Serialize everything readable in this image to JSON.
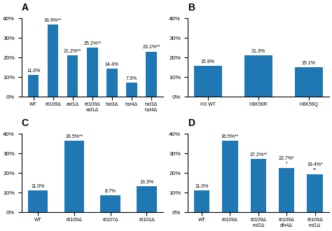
{
  "chart_data": [
    {
      "type": "bar",
      "title": "A",
      "categories": [
        "WT",
        "rtt109Δ",
        "asf1Δ",
        "rtt109Δ\nasf1Δ",
        "hst3Δ",
        "hst4Δ",
        "hst3Δ\nhst4Δ"
      ],
      "values": [
        11.0,
        36.9,
        21.2,
        25.2,
        14.4,
        7.3,
        23.1
      ],
      "value_labels": [
        "11.0%",
        "36.9%**",
        "21.2%**",
        "25.2%**",
        "14.4%",
        "7.3%",
        "23.1%**"
      ],
      "data_labels": true,
      "ylim": [
        0,
        40
      ],
      "yticks": [
        {
          "value": 0,
          "label": "0%"
        },
        {
          "value": 10,
          "label": "10%"
        },
        {
          "value": 20,
          "label": "20%"
        },
        {
          "value": 30,
          "label": "30%"
        },
        {
          "value": 40,
          "label": "40%"
        }
      ]
    },
    {
      "type": "bar",
      "title": "B",
      "categories": [
        "H3 WT",
        "H3K56R",
        "H3K56Q"
      ],
      "values": [
        15.9,
        21.3,
        15.1
      ],
      "value_labels": [
        "15.9%",
        "21.3%",
        "15.1%"
      ],
      "data_labels": true,
      "ylim": [
        0,
        40
      ],
      "yticks": [
        {
          "value": 0,
          "label": "0%"
        },
        {
          "value": 10,
          "label": "10%"
        },
        {
          "value": 20,
          "label": "20%"
        },
        {
          "value": 30,
          "label": "30%"
        },
        {
          "value": 40,
          "label": "40%"
        }
      ]
    },
    {
      "type": "bar",
      "title": "C",
      "categories": [
        "WT",
        "rtt109Δ",
        "rtt107Δ",
        "rtt101Δ"
      ],
      "values": [
        11.0,
        36.5,
        8.7,
        13.3
      ],
      "value_labels": [
        "11.0%",
        "36.5%**",
        "8.7%",
        "13.3%"
      ],
      "data_labels": true,
      "ylim": [
        0,
        40
      ],
      "yticks": [
        {
          "value": 0,
          "label": "0%"
        },
        {
          "value": 10,
          "label": "10%"
        },
        {
          "value": 20,
          "label": "20%"
        },
        {
          "value": 30,
          "label": "30%"
        },
        {
          "value": 40,
          "label": "40%"
        }
      ]
    },
    {
      "type": "bar",
      "title": "D",
      "categories": [
        "WT",
        "rtt109Δ",
        "rtt109Δ\nrrd2Δ",
        "rtt109Δ\ndlh4Δ",
        "rtt109Δ\nrrd1Δ"
      ],
      "values": [
        11.0,
        36.5,
        27.2,
        22.7,
        19.4
      ],
      "value_labels": [
        "11.0%",
        "36.5%**",
        "27.2%**",
        "22.7%*\n*",
        "19.4%*\n**"
      ],
      "data_labels": true,
      "ylim": [
        0,
        40
      ],
      "yticks": [
        {
          "value": 0,
          "label": "0%"
        },
        {
          "value": 10,
          "label": "10%"
        },
        {
          "value": 20,
          "label": "20%"
        },
        {
          "value": 30,
          "label": "30%"
        },
        {
          "value": 40,
          "label": "40%"
        }
      ]
    }
  ]
}
